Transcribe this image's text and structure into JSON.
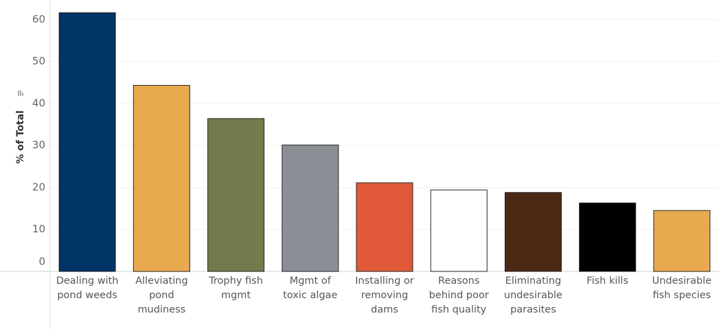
{
  "chart_data": {
    "type": "bar",
    "y_label": "% of Total",
    "categories": [
      "Dealing with\npond weeds",
      "Alleviating\npond\nmudiness",
      "Trophy fish\nmgmt",
      "Mgmt of\ntoxic algae",
      "Installing or\nremoving\ndams",
      "Reasons\nbehind poor\nfish quality",
      "Eliminating\nundesirable\nparasites",
      "Fish kills",
      "Undesirable\nfish species"
    ],
    "values": [
      61.6,
      44.3,
      36.4,
      30.1,
      21.1,
      19.4,
      18.8,
      16.3,
      14.5
    ],
    "colors": [
      "#003366",
      "#e8a94f",
      "#737b4d",
      "#8a8f96",
      "#e05a3a",
      "#ffffff",
      "#4a2a14",
      "#000000",
      "#e8a94f"
    ],
    "ylim": [
      0,
      63
    ],
    "yticks": [
      0,
      10,
      20,
      30,
      40,
      50,
      60
    ],
    "grid": true
  }
}
